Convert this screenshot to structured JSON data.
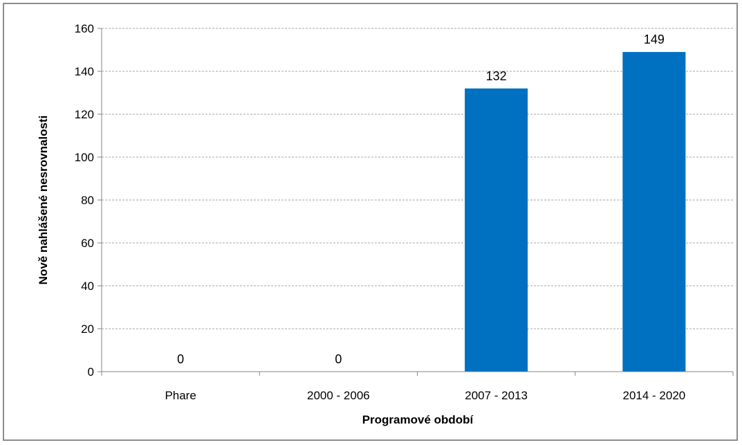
{
  "chart_data": {
    "type": "bar",
    "title": "",
    "xlabel": "Programové období",
    "ylabel": "Nově nahlášené nesrovnalosti",
    "categories": [
      "Phare",
      "2000 - 2006",
      "2007 - 2013",
      "2014 - 2020"
    ],
    "values": [
      0,
      0,
      132,
      149
    ],
    "data_labels": [
      "0",
      "0",
      "132",
      "149"
    ],
    "ylim": [
      0,
      160
    ],
    "yticks": [
      "0",
      "20",
      "40",
      "60",
      "80",
      "100",
      "120",
      "140",
      "160"
    ],
    "grid": true,
    "legend": "none",
    "colors": {
      "bar": "#0070C0",
      "grid": "#A6A6A6",
      "axis": "#868686"
    }
  }
}
